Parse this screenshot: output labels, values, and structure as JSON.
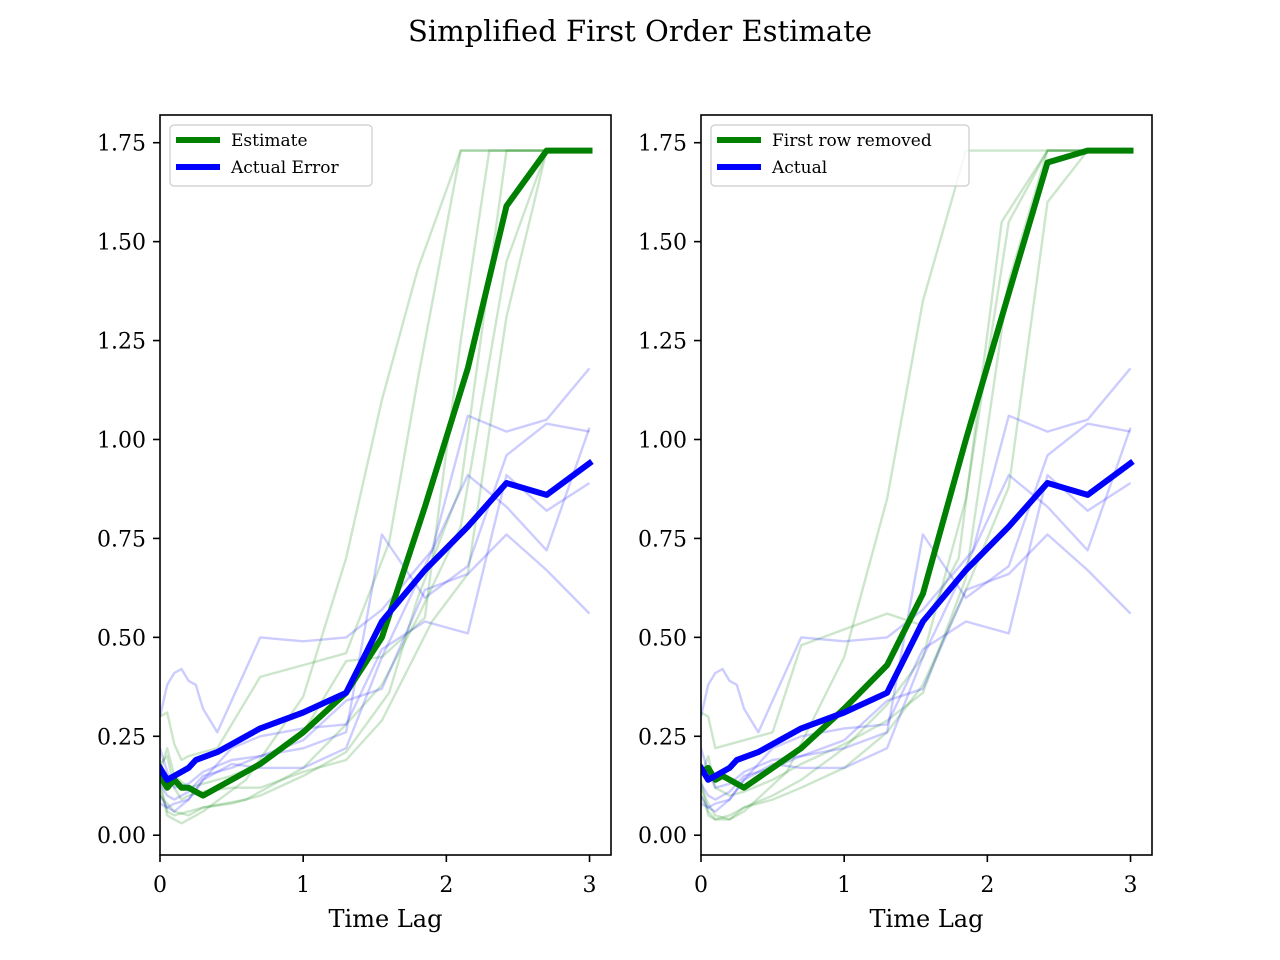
{
  "figure": {
    "title": "Simplified First Order Estimate"
  },
  "colors": {
    "estimate": "#008000",
    "actual": "#0000ff"
  },
  "chart_data": [
    {
      "type": "line",
      "xlabel": "Time Lag",
      "ylabel": "",
      "xlim": [
        0,
        3.15
      ],
      "ylim": [
        -0.05,
        1.82
      ],
      "xticks": [
        0,
        1,
        2,
        3
      ],
      "xtick_labels": [
        "0",
        "1",
        "2",
        "3"
      ],
      "yticks": [
        0.0,
        0.25,
        0.5,
        0.75,
        1.0,
        1.25,
        1.5,
        1.75
      ],
      "ytick_labels": [
        "0.00",
        "0.25",
        "0.50",
        "0.75",
        "1.00",
        "1.25",
        "1.50",
        "1.75"
      ],
      "grid": false,
      "legend_position": "upper-left",
      "series": [
        {
          "name": "Estimate",
          "color": "#008000",
          "x": [
            0,
            0.05,
            0.1,
            0.15,
            0.2,
            0.25,
            0.3,
            0.7,
            1.0,
            1.3,
            1.55,
            1.85,
            2.15,
            2.42,
            2.7,
            3.0
          ],
          "y": [
            0.15,
            0.12,
            0.14,
            0.12,
            0.12,
            0.11,
            0.1,
            0.18,
            0.26,
            0.36,
            0.5,
            0.83,
            1.18,
            1.59,
            1.73,
            1.73
          ]
        },
        {
          "name": "Actual Error",
          "color": "#0000ff",
          "x": [
            0,
            0.05,
            0.1,
            0.2,
            0.25,
            0.4,
            0.7,
            1.0,
            1.3,
            1.55,
            1.85,
            2.15,
            2.42,
            2.7,
            3.0
          ],
          "y": [
            0.17,
            0.14,
            0.15,
            0.17,
            0.19,
            0.21,
            0.27,
            0.31,
            0.36,
            0.54,
            0.67,
            0.78,
            0.89,
            0.86,
            0.94
          ]
        }
      ],
      "background_series": [
        {
          "color": "#008000",
          "x": [
            0,
            0.05,
            0.1,
            0.15,
            0.2,
            0.3,
            0.4,
            0.7,
            1.0,
            1.3,
            1.6,
            1.8,
            2.1,
            2.3,
            3.0
          ],
          "y": [
            0.3,
            0.31,
            0.23,
            0.19,
            0.2,
            0.21,
            0.22,
            0.4,
            0.43,
            0.46,
            0.74,
            1.15,
            1.73,
            1.73,
            1.73
          ]
        },
        {
          "color": "#008000",
          "x": [
            0,
            0.05,
            0.1,
            0.2,
            0.3,
            0.5,
            0.7,
            1.0,
            1.3,
            1.6,
            1.8,
            2.1,
            2.42,
            2.7,
            3.0
          ],
          "y": [
            0.1,
            0.08,
            0.06,
            0.05,
            0.07,
            0.08,
            0.1,
            0.15,
            0.21,
            0.36,
            0.6,
            0.88,
            1.73,
            1.73,
            1.73
          ]
        },
        {
          "color": "#008000",
          "x": [
            0,
            0.05,
            0.1,
            0.15,
            0.2,
            0.3,
            0.5,
            0.7,
            1.0,
            1.3,
            1.55,
            1.9,
            2.15,
            2.42,
            2.7,
            3.0
          ],
          "y": [
            0.18,
            0.2,
            0.12,
            0.09,
            0.1,
            0.11,
            0.12,
            0.12,
            0.16,
            0.19,
            0.29,
            0.54,
            0.66,
            1.31,
            1.73,
            1.73
          ]
        },
        {
          "color": "#008000",
          "x": [
            0,
            0.05,
            0.1,
            0.2,
            0.3,
            0.6,
            1.0,
            1.3,
            1.55,
            1.8,
            2.1,
            2.42,
            2.7,
            3.0
          ],
          "y": [
            0.12,
            0.06,
            0.05,
            0.06,
            0.07,
            0.09,
            0.17,
            0.28,
            0.38,
            0.55,
            0.78,
            1.45,
            1.73,
            1.73
          ]
        },
        {
          "color": "#008000",
          "x": [
            0,
            0.05,
            0.1,
            0.15,
            0.2,
            0.3,
            0.6,
            1.0,
            1.3,
            1.55,
            1.8,
            2.1,
            2.3,
            3.0
          ],
          "y": [
            0.14,
            0.05,
            0.04,
            0.03,
            0.04,
            0.06,
            0.14,
            0.35,
            0.7,
            1.1,
            1.43,
            1.73,
            1.73,
            1.73
          ]
        },
        {
          "color": "#008000",
          "x": [
            0,
            0.05,
            0.1,
            0.2,
            0.3,
            0.5,
            0.7,
            1.0,
            1.3,
            1.55,
            1.85,
            2.1,
            2.3,
            3.0
          ],
          "y": [
            0.16,
            0.22,
            0.15,
            0.12,
            0.13,
            0.15,
            0.18,
            0.26,
            0.44,
            0.45,
            0.55,
            1.25,
            1.73,
            1.73
          ]
        },
        {
          "color": "#0000ff",
          "x": [
            0,
            0.05,
            0.1,
            0.15,
            0.2,
            0.25,
            0.3,
            0.4,
            0.7,
            1.0,
            1.3,
            1.55,
            1.9,
            2.15,
            2.42,
            2.7,
            3.0
          ],
          "y": [
            0.3,
            0.38,
            0.41,
            0.42,
            0.39,
            0.38,
            0.32,
            0.26,
            0.5,
            0.49,
            0.5,
            0.57,
            0.72,
            1.06,
            1.02,
            1.05,
            1.18
          ]
        },
        {
          "color": "#0000ff",
          "x": [
            0,
            0.05,
            0.1,
            0.2,
            0.3,
            0.5,
            0.7,
            1.0,
            1.3,
            1.55,
            1.85,
            2.15,
            2.42,
            2.7,
            3.0
          ],
          "y": [
            0.1,
            0.07,
            0.08,
            0.09,
            0.14,
            0.22,
            0.25,
            0.27,
            0.28,
            0.47,
            0.54,
            0.51,
            0.91,
            0.82,
            0.89
          ]
        },
        {
          "color": "#0000ff",
          "x": [
            0,
            0.05,
            0.1,
            0.2,
            0.3,
            0.5,
            0.7,
            1.0,
            1.3,
            1.55,
            1.85,
            2.15,
            2.42,
            2.7,
            3.0
          ],
          "y": [
            0.22,
            0.16,
            0.12,
            0.13,
            0.16,
            0.19,
            0.2,
            0.22,
            0.26,
            0.76,
            0.6,
            0.68,
            0.96,
            1.04,
            1.02
          ]
        },
        {
          "color": "#0000ff",
          "x": [
            0,
            0.05,
            0.1,
            0.2,
            0.3,
            0.5,
            0.7,
            1.0,
            1.3,
            1.55,
            1.85,
            2.15,
            2.42,
            2.7,
            3.0
          ],
          "y": [
            0.08,
            0.07,
            0.06,
            0.09,
            0.14,
            0.18,
            0.17,
            0.17,
            0.22,
            0.45,
            0.68,
            0.91,
            0.83,
            0.72,
            1.03
          ]
        },
        {
          "color": "#0000ff",
          "x": [
            0,
            0.05,
            0.1,
            0.2,
            0.3,
            0.5,
            0.7,
            1.0,
            1.3,
            1.55,
            1.85,
            2.15,
            2.42,
            2.7,
            3.0
          ],
          "y": [
            0.13,
            0.1,
            0.09,
            0.11,
            0.15,
            0.17,
            0.2,
            0.24,
            0.34,
            0.37,
            0.62,
            0.66,
            0.76,
            0.67,
            0.56
          ]
        }
      ]
    },
    {
      "type": "line",
      "xlabel": "Time Lag",
      "ylabel": "",
      "xlim": [
        0,
        3.15
      ],
      "ylim": [
        -0.05,
        1.82
      ],
      "xticks": [
        0,
        1,
        2,
        3
      ],
      "xtick_labels": [
        "0",
        "1",
        "2",
        "3"
      ],
      "yticks": [
        0.0,
        0.25,
        0.5,
        0.75,
        1.0,
        1.25,
        1.5,
        1.75
      ],
      "ytick_labels": [
        "0.00",
        "0.25",
        "0.50",
        "0.75",
        "1.00",
        "1.25",
        "1.50",
        "1.75"
      ],
      "grid": false,
      "legend_position": "upper-left",
      "series": [
        {
          "name": "First row removed",
          "color": "#008000",
          "x": [
            0,
            0.05,
            0.1,
            0.15,
            0.2,
            0.3,
            0.7,
            1.0,
            1.3,
            1.55,
            1.85,
            2.15,
            2.42,
            2.7,
            3.0
          ],
          "y": [
            0.16,
            0.17,
            0.14,
            0.15,
            0.14,
            0.12,
            0.22,
            0.32,
            0.43,
            0.61,
            1.0,
            1.37,
            1.7,
            1.73,
            1.73
          ]
        },
        {
          "name": "Actual",
          "color": "#0000ff",
          "x": [
            0,
            0.05,
            0.1,
            0.2,
            0.25,
            0.4,
            0.7,
            1.0,
            1.3,
            1.55,
            1.85,
            2.15,
            2.42,
            2.7,
            3.0
          ],
          "y": [
            0.17,
            0.14,
            0.15,
            0.17,
            0.19,
            0.21,
            0.27,
            0.31,
            0.36,
            0.54,
            0.67,
            0.78,
            0.89,
            0.86,
            0.94
          ]
        }
      ],
      "background_series": [
        {
          "color": "#008000",
          "x": [
            0,
            0.05,
            0.1,
            0.2,
            0.3,
            0.5,
            0.7,
            1.0,
            1.3,
            1.55,
            1.8,
            2.1,
            2.42,
            2.7,
            3.0
          ],
          "y": [
            0.31,
            0.3,
            0.22,
            0.23,
            0.24,
            0.26,
            0.48,
            0.52,
            0.56,
            0.53,
            0.7,
            1.55,
            1.73,
            1.73,
            1.73
          ]
        },
        {
          "color": "#008000",
          "x": [
            0,
            0.05,
            0.1,
            0.2,
            0.3,
            0.5,
            0.7,
            1.0,
            1.3,
            1.55,
            1.85,
            2.15,
            2.42,
            2.7,
            3.0
          ],
          "y": [
            0.12,
            0.08,
            0.05,
            0.04,
            0.07,
            0.1,
            0.14,
            0.22,
            0.33,
            0.45,
            0.85,
            1.55,
            1.73,
            1.73,
            1.73
          ]
        },
        {
          "color": "#008000",
          "x": [
            0,
            0.05,
            0.1,
            0.2,
            0.3,
            0.5,
            0.7,
            1.0,
            1.3,
            1.55,
            1.85,
            2.15,
            2.42,
            2.7,
            3.0
          ],
          "y": [
            0.1,
            0.06,
            0.04,
            0.05,
            0.07,
            0.09,
            0.12,
            0.17,
            0.26,
            0.38,
            0.62,
            0.88,
            1.6,
            1.73,
            1.73
          ]
        },
        {
          "color": "#008000",
          "x": [
            0,
            0.05,
            0.1,
            0.2,
            0.3,
            0.6,
            1.0,
            1.3,
            1.55,
            1.85,
            2.15,
            2.3,
            3.0
          ],
          "y": [
            0.14,
            0.05,
            0.04,
            0.04,
            0.06,
            0.16,
            0.45,
            0.85,
            1.35,
            1.73,
            1.73,
            1.73,
            1.73
          ]
        },
        {
          "color": "#008000",
          "x": [
            0,
            0.05,
            0.1,
            0.2,
            0.3,
            0.5,
            0.7,
            1.0,
            1.3,
            1.55,
            1.85,
            2.15,
            2.42,
            2.7,
            3.0
          ],
          "y": [
            0.15,
            0.2,
            0.12,
            0.1,
            0.11,
            0.14,
            0.18,
            0.23,
            0.29,
            0.36,
            0.65,
            1.4,
            1.73,
            1.73,
            1.73
          ]
        },
        {
          "color": "#0000ff",
          "x": [
            0,
            0.05,
            0.1,
            0.15,
            0.2,
            0.25,
            0.3,
            0.4,
            0.7,
            1.0,
            1.3,
            1.55,
            1.9,
            2.15,
            2.42,
            2.7,
            3.0
          ],
          "y": [
            0.3,
            0.38,
            0.41,
            0.42,
            0.39,
            0.38,
            0.32,
            0.26,
            0.5,
            0.49,
            0.5,
            0.57,
            0.72,
            1.06,
            1.02,
            1.05,
            1.18
          ]
        },
        {
          "color": "#0000ff",
          "x": [
            0,
            0.05,
            0.1,
            0.2,
            0.3,
            0.5,
            0.7,
            1.0,
            1.3,
            1.55,
            1.85,
            2.15,
            2.42,
            2.7,
            3.0
          ],
          "y": [
            0.1,
            0.07,
            0.08,
            0.09,
            0.14,
            0.22,
            0.25,
            0.27,
            0.28,
            0.47,
            0.54,
            0.51,
            0.91,
            0.82,
            0.89
          ]
        },
        {
          "color": "#0000ff",
          "x": [
            0,
            0.05,
            0.1,
            0.2,
            0.3,
            0.5,
            0.7,
            1.0,
            1.3,
            1.55,
            1.85,
            2.15,
            2.42,
            2.7,
            3.0
          ],
          "y": [
            0.22,
            0.16,
            0.12,
            0.13,
            0.16,
            0.19,
            0.2,
            0.22,
            0.26,
            0.76,
            0.6,
            0.68,
            0.96,
            1.04,
            1.02
          ]
        },
        {
          "color": "#0000ff",
          "x": [
            0,
            0.05,
            0.1,
            0.2,
            0.3,
            0.5,
            0.7,
            1.0,
            1.3,
            1.55,
            1.85,
            2.15,
            2.42,
            2.7,
            3.0
          ],
          "y": [
            0.08,
            0.07,
            0.06,
            0.09,
            0.14,
            0.18,
            0.17,
            0.17,
            0.22,
            0.45,
            0.68,
            0.91,
            0.83,
            0.72,
            1.03
          ]
        },
        {
          "color": "#0000ff",
          "x": [
            0,
            0.05,
            0.1,
            0.2,
            0.3,
            0.5,
            0.7,
            1.0,
            1.3,
            1.55,
            1.85,
            2.15,
            2.42,
            2.7,
            3.0
          ],
          "y": [
            0.13,
            0.1,
            0.09,
            0.11,
            0.15,
            0.17,
            0.2,
            0.24,
            0.34,
            0.37,
            0.62,
            0.66,
            0.76,
            0.67,
            0.56
          ]
        }
      ]
    }
  ]
}
